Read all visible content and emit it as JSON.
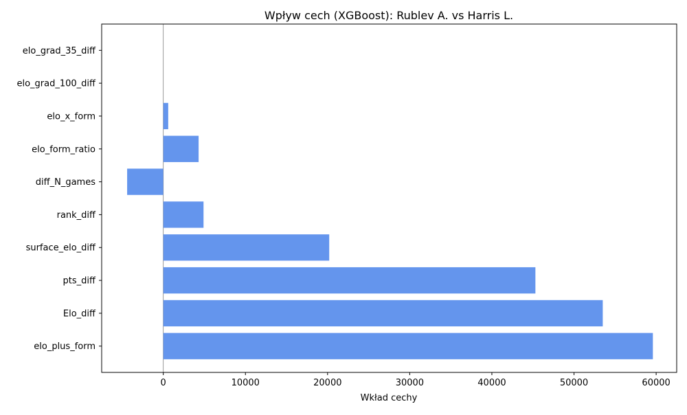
{
  "chart_data": {
    "type": "bar",
    "orientation": "horizontal",
    "title": "Wpływ cech (XGBoost): Rublev A. vs Harris L.",
    "xlabel": "Wkład cechy",
    "ylabel": "",
    "categories": [
      "elo_grad_35_diff",
      "elo_grad_100_diff",
      "elo_x_form",
      "elo_form_ratio",
      "diff_N_games",
      "rank_diff",
      "surface_elo_diff",
      "pts_diff",
      "Elo_diff",
      "elo_plus_form"
    ],
    "values": [
      0,
      0,
      600,
      4300,
      -4400,
      4900,
      20200,
      45300,
      53500,
      59600
    ],
    "xlim": [
      -7500,
      62500
    ],
    "xticks": [
      0,
      10000,
      20000,
      30000,
      40000,
      50000,
      60000
    ],
    "xtick_labels": [
      "0",
      "10000",
      "20000",
      "30000",
      "40000",
      "50000",
      "60000"
    ],
    "zero_line": true,
    "grid": false,
    "legend": "none",
    "colors": {
      "bar": "#6495ed",
      "zero_line": "#808080",
      "axes": "#000000",
      "background": "#ffffff"
    }
  }
}
